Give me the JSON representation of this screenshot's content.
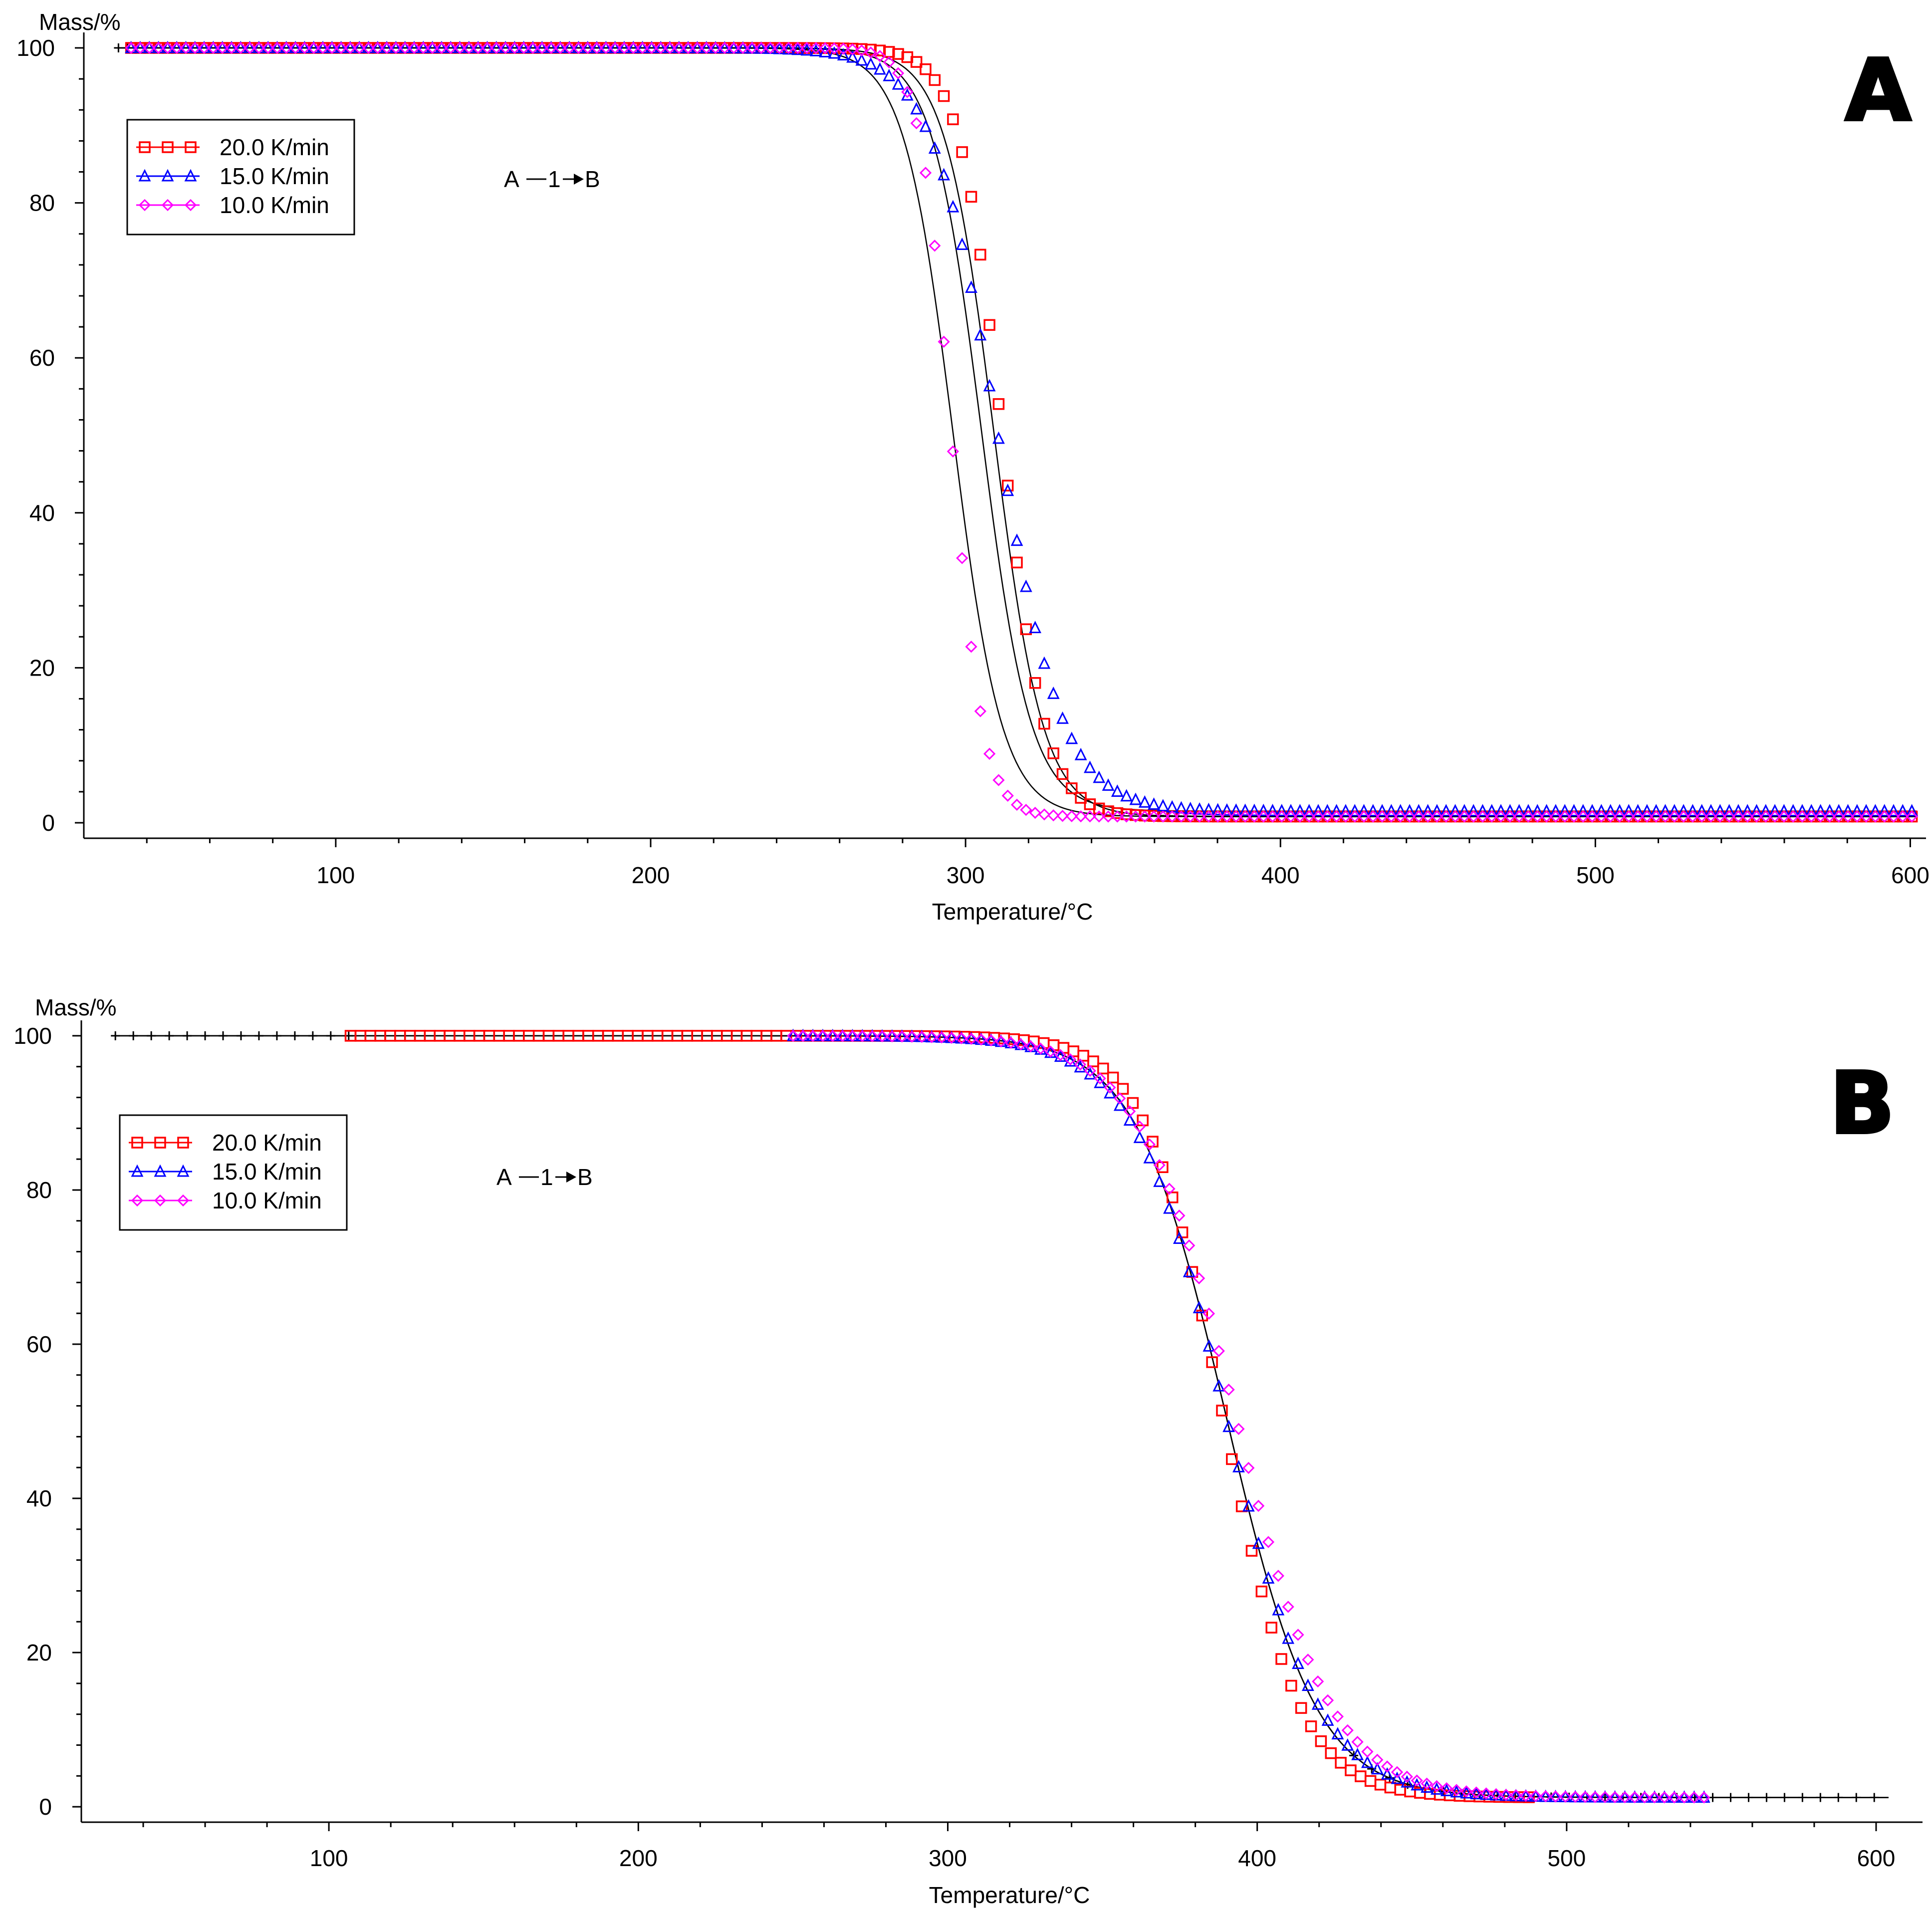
{
  "colors": {
    "series_20": "#ff0000",
    "series_15": "#0000ff",
    "series_10": "#ff00ff",
    "fit": "#000000",
    "axis": "#000000",
    "background": "#ffffff"
  },
  "chart_data": [
    {
      "id": "A",
      "type": "scatter",
      "panel_label": "A",
      "ylabel": "Mass/%",
      "xlabel": "Temperature/°C",
      "xlim": [
        20,
        605
      ],
      "ylim": [
        -2,
        102
      ],
      "x_ticks": [
        100,
        200,
        300,
        400,
        500,
        600
      ],
      "y_ticks": [
        0,
        20,
        40,
        60,
        80,
        100
      ],
      "legend_position": "top-left",
      "annotation": {
        "left": "A",
        "mid": "1",
        "right": "B"
      },
      "fit_start": 31,
      "fit_end": 602,
      "fit_marker": "plus",
      "series": [
        {
          "name": "20.0 K/min",
          "marker": "square",
          "color_key": "series_20",
          "x_start": 35,
          "x_end": 602,
          "step": 2.9,
          "t_half": 311.5,
          "width": 6.8,
          "residual": 0.8,
          "fit_t_half": 309,
          "fit_width": 7.8
        },
        {
          "name": "15.0 K/min",
          "marker": "triangle",
          "color_key": "series_15",
          "x_start": 35,
          "x_end": 602,
          "step": 2.9,
          "t_half": 310,
          "width": 10.5,
          "residual": 1.5,
          "fit_t_half": 305,
          "fit_width": 7.8
        },
        {
          "name": "10.0 K/min",
          "marker": "diamond",
          "color_key": "series_10",
          "x_start": 35,
          "x_end": 602,
          "step": 2.9,
          "t_half": 295.5,
          "width": 5.0,
          "residual": 0.8,
          "fit_t_half": 296,
          "fit_width": 7.8
        }
      ]
    },
    {
      "id": "B",
      "type": "scatter",
      "panel_label": "B",
      "ylabel": "Mass/%",
      "xlabel": "Temperature/°C",
      "xlim": [
        20,
        615
      ],
      "ylim": [
        -2,
        102
      ],
      "x_ticks": [
        100,
        200,
        300,
        400,
        500,
        600
      ],
      "y_ticks": [
        0,
        20,
        40,
        60,
        80,
        100
      ],
      "legend_position": "top-left",
      "annotation": {
        "left": "A",
        "mid": "1",
        "right": "B"
      },
      "fit_start": 31,
      "fit_end": 604,
      "fit_marker": "plus",
      "series": [
        {
          "name": "20.0 K/min",
          "marker": "square",
          "color_key": "series_20",
          "x_start": 107,
          "x_end": 490,
          "step": 3.2,
          "t_half": 389,
          "width": 12.5,
          "residual": 1.2,
          "fit_t_half": 390,
          "fit_width": 14.5
        },
        {
          "name": "15.0 K/min",
          "marker": "triangle",
          "color_key": "series_15",
          "x_start": 250,
          "x_end": 545,
          "step": 3.2,
          "t_half": 390,
          "width": 15.0,
          "residual": 1.2,
          "fit_t_half": 390,
          "fit_width": 14.5
        },
        {
          "name": "10.0 K/min",
          "marker": "diamond",
          "color_key": "series_10",
          "x_start": 250,
          "x_end": 545,
          "step": 3.2,
          "t_half": 393,
          "width": 15.5,
          "residual": 1.2,
          "fit_t_half": 390,
          "fit_width": 14.5
        }
      ]
    }
  ]
}
